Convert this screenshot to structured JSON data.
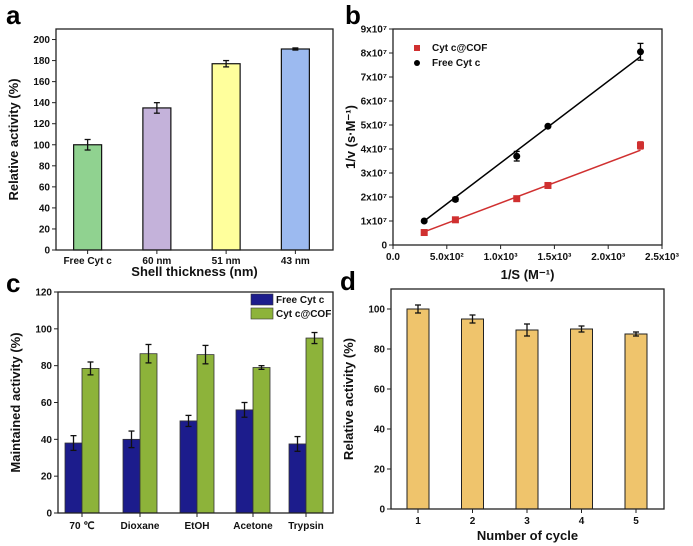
{
  "chart_data": [
    {
      "panel": "a",
      "type": "bar",
      "xlabel": "Shell thickness (nm)",
      "ylabel": "Relative activity (%)",
      "categories": [
        "Free Cyt c",
        "60 nm",
        "51 nm",
        "43 nm"
      ],
      "values": [
        100,
        135,
        177,
        191
      ],
      "errors": [
        5,
        5,
        3,
        1
      ],
      "colors": [
        "#90d290",
        "#c4b2da",
        "#ffff9c",
        "#9cbaf0"
      ],
      "ylim": [
        0,
        210
      ],
      "yticks": [
        0,
        20,
        40,
        60,
        80,
        100,
        120,
        140,
        160,
        180,
        200
      ]
    },
    {
      "panel": "b",
      "type": "scatter",
      "xlabel": "1/S (M⁻¹)",
      "ylabel": "1/v (s·M⁻¹)",
      "xlim": [
        0,
        2500
      ],
      "ylim": [
        0,
        90000000
      ],
      "xticks": [
        "0.0",
        "5.0x10²",
        "1.0x10³",
        "1.5x10³",
        "2.0x10³",
        "2.5x10³"
      ],
      "yticks": [
        "0",
        "1x10⁷",
        "2x10⁷",
        "3x10⁷",
        "4x10⁷",
        "5x10⁷",
        "6x10⁷",
        "7x10⁷",
        "8x10⁷",
        "9x10⁷"
      ],
      "legend_position": "top-left",
      "series": [
        {
          "name": "Cyt c@COF",
          "color": "#d03030",
          "marker": "square",
          "x": [
            290,
            580,
            1150,
            1440,
            2300
          ],
          "y": [
            5200000,
            10500000,
            19300000,
            24800000,
            41500000
          ],
          "errors": [
            300000,
            300000,
            400000,
            300000,
            1500000
          ],
          "fit": [
            [
              290,
              5500000
            ],
            [
              2300,
              39500000
            ]
          ]
        },
        {
          "name": "Free Cyt c",
          "color": "#000000",
          "marker": "circle",
          "x": [
            290,
            580,
            1150,
            1440,
            2300
          ],
          "y": [
            10000000,
            19000000,
            37000000,
            49500000,
            80500000
          ],
          "errors": [
            300000,
            800000,
            2000000,
            400000,
            3500000
          ],
          "fit": [
            [
              290,
              10000000
            ],
            [
              2300,
              78500000
            ]
          ]
        }
      ]
    },
    {
      "panel": "c",
      "type": "bar",
      "ylabel": "Maintained activity (%)",
      "categories": [
        "70 ℃",
        "Dioxane",
        "EtOH",
        "Acetone",
        "Trypsin"
      ],
      "ylim": [
        0,
        120
      ],
      "yticks": [
        0,
        20,
        40,
        60,
        80,
        100,
        120
      ],
      "legend_position": "top-right",
      "series": [
        {
          "name": "Free Cyt c",
          "color": "#1c1c8c",
          "values": [
            38,
            40,
            50,
            56,
            37.5
          ],
          "errors": [
            4,
            4.5,
            3,
            4,
            4
          ]
        },
        {
          "name": "Cyt c@COF",
          "color": "#8db33a",
          "values": [
            78.5,
            86.5,
            86,
            79,
            95
          ],
          "errors": [
            3.5,
            5,
            5,
            1,
            3
          ]
        }
      ]
    },
    {
      "panel": "d",
      "type": "bar",
      "xlabel": "Number of cycle",
      "ylabel": "Relative activity (%)",
      "categories": [
        "1",
        "2",
        "3",
        "4",
        "5"
      ],
      "values": [
        100,
        95,
        89.5,
        90,
        87.5
      ],
      "errors": [
        2,
        2,
        3,
        1.5,
        1
      ],
      "color": "#efc46c",
      "ylim": [
        0,
        110
      ],
      "yticks": [
        0,
        20,
        40,
        60,
        80,
        100
      ]
    }
  ],
  "panel_labels": [
    "a",
    "b",
    "c",
    "d"
  ]
}
